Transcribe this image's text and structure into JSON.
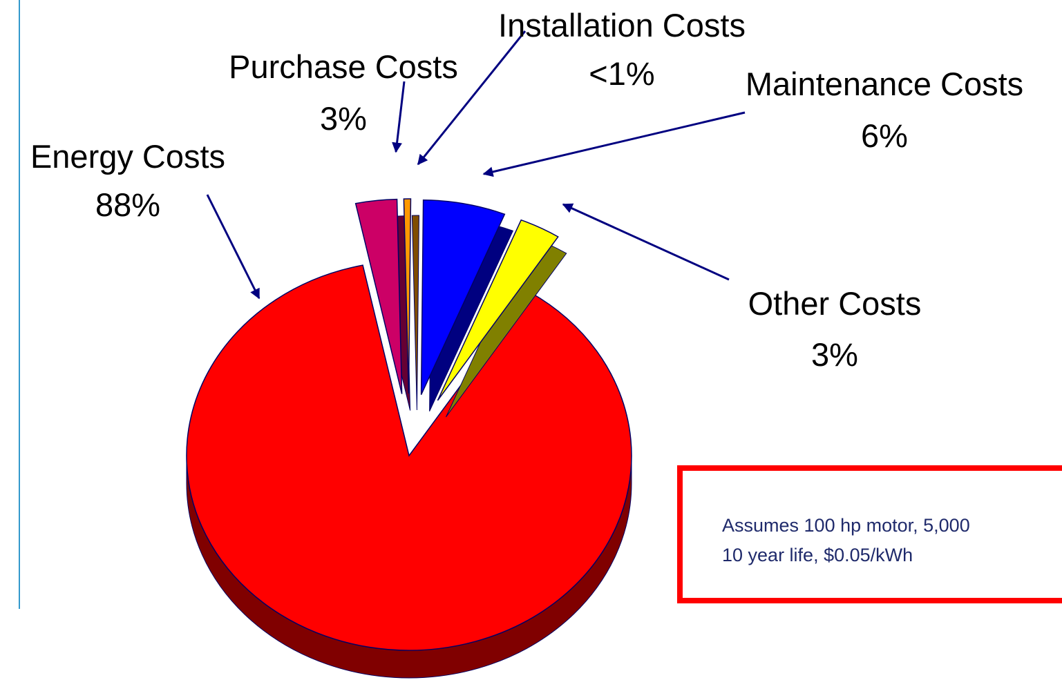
{
  "chart_data": {
    "type": "pie",
    "categories": [
      "Energy Costs",
      "Purchase Costs",
      "Installation Costs",
      "Maintenance Costs",
      "Other Costs"
    ],
    "values": [
      88,
      3,
      0.5,
      6,
      3
    ],
    "value_labels": [
      "88%",
      "3%",
      "<1%",
      "6%",
      "3%"
    ],
    "colors": [
      "#ff0000",
      "#cc0066",
      "#ff9900",
      "#0000ff",
      "#ffff00"
    ],
    "annotation": [
      "Assumes 100 hp motor, 5,000",
      "10 year life, $0.05/kWh"
    ]
  }
}
